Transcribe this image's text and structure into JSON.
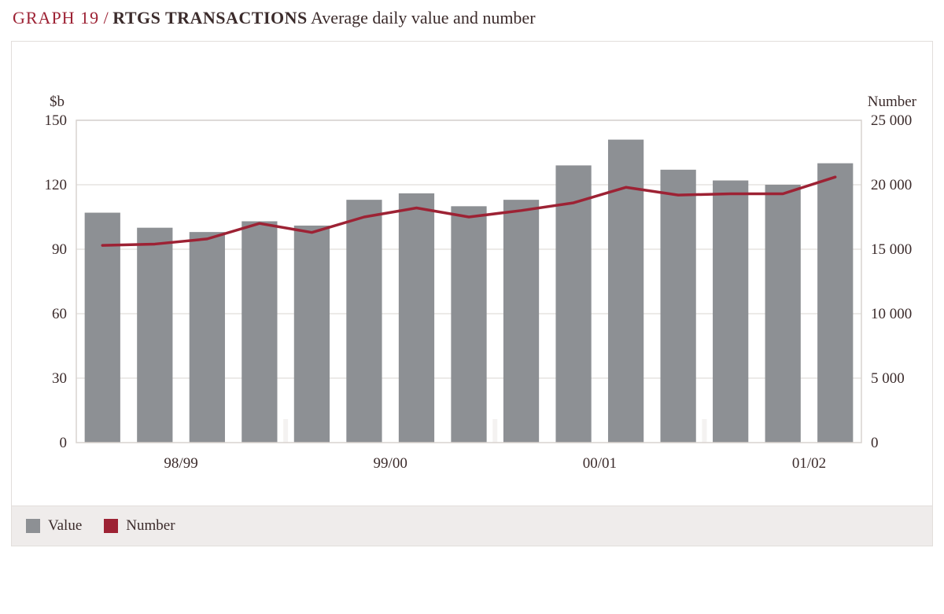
{
  "title": {
    "prefix": "GRAPH 19",
    "slash": " / ",
    "main": "RTGS TRANSACTIONS",
    "sub": "  Average daily value and number"
  },
  "chart": {
    "type": "bar+line",
    "background_color": "#ffffff",
    "panel_border_color": "#e2dedb",
    "plot_border_color": "#d8d3cf",
    "grid_color": "#e6e3e1",
    "bar_color": "#8d9094",
    "line_color": "#9d2234",
    "line_width": 3.5,
    "bar_width_ratio": 0.68,
    "left_axis": {
      "unit": "$b",
      "min": 0,
      "max": 150,
      "ticks": [
        0,
        30,
        60,
        90,
        120,
        150
      ]
    },
    "right_axis": {
      "unit": "Number",
      "min": 0,
      "max": 25000,
      "ticks": [
        0,
        5000,
        10000,
        15000,
        20000,
        25000
      ],
      "tick_labels": [
        "0",
        "5 000",
        "10 000",
        "15 000",
        "20 000",
        "25 000"
      ]
    },
    "x_labels": [
      {
        "index": 1.5,
        "text": "98/99"
      },
      {
        "index": 5.5,
        "text": "99/00"
      },
      {
        "index": 9.5,
        "text": "00/01"
      },
      {
        "index": 13.5,
        "text": "01/02"
      }
    ],
    "x_separators_after": [
      3,
      7,
      11
    ],
    "bars_value": [
      107,
      100,
      98,
      103,
      101,
      113,
      116,
      110,
      113,
      129,
      141,
      127,
      122,
      120,
      130
    ],
    "line_number": [
      15300,
      15400,
      15800,
      17000,
      16300,
      17500,
      18200,
      17500,
      18000,
      18600,
      19800,
      19200,
      19300,
      19300,
      20600
    ]
  },
  "legend": {
    "strip_bg": "#efeceb",
    "items": [
      {
        "label": "Value",
        "color": "#8d9094"
      },
      {
        "label": "Number",
        "color": "#9d2234"
      }
    ]
  }
}
